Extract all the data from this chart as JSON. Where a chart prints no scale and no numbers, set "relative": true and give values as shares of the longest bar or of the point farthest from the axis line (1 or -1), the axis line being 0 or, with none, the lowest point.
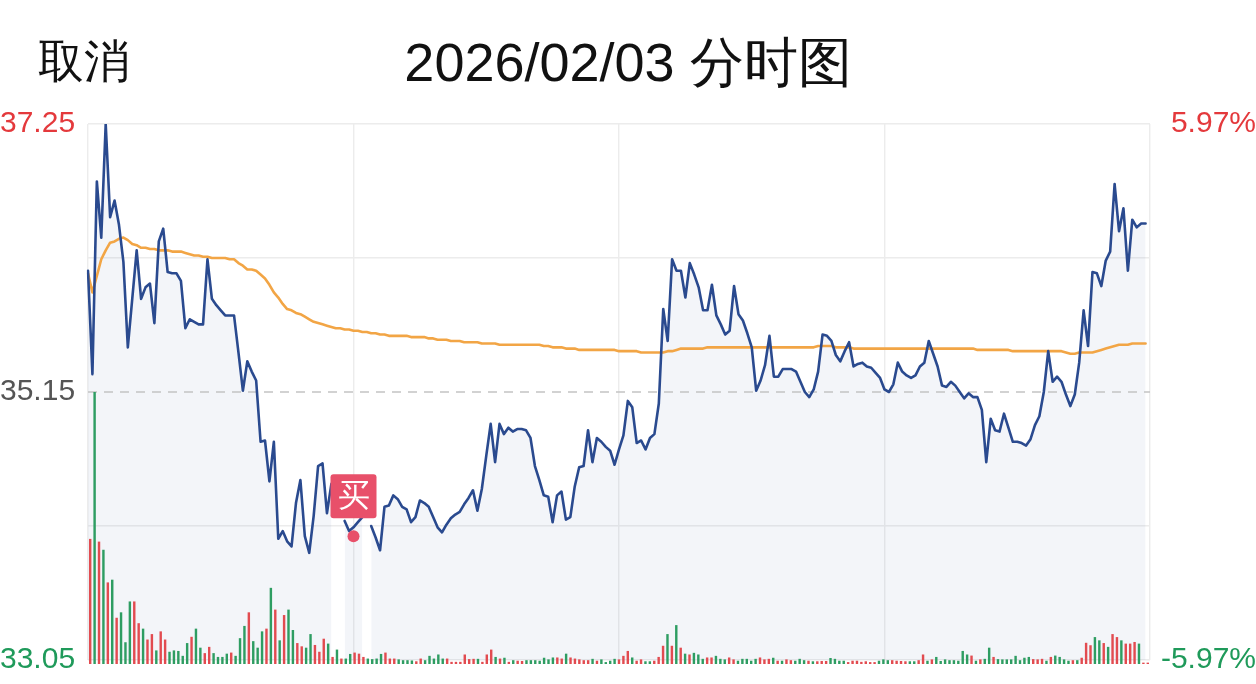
{
  "chart_data": [
    {
      "type": "line",
      "title": "2026/02/03 分时图",
      "annotations": [
        "取消"
      ],
      "categories": [
        null,
        null,
        null,
        null,
        null,
        null,
        null,
        null,
        null,
        null,
        null,
        null,
        null,
        null,
        null,
        null,
        null,
        null,
        null,
        null,
        null,
        null,
        null,
        null,
        null,
        null,
        null,
        null,
        null,
        null,
        null,
        null,
        null,
        null,
        null,
        null,
        null,
        null,
        null,
        null,
        null,
        null,
        null,
        null,
        null,
        null,
        null,
        null,
        null,
        null,
        null,
        null,
        null,
        null,
        null,
        null,
        null,
        null,
        null,
        null,
        null,
        null,
        null,
        null,
        null,
        null,
        null,
        null,
        null,
        null,
        null,
        null,
        null,
        null,
        null,
        null,
        null,
        null,
        null,
        null,
        null,
        null,
        null,
        null,
        null,
        null,
        null,
        null,
        null,
        null,
        null,
        null,
        null,
        null,
        null,
        null,
        null,
        null,
        null,
        null,
        null,
        null,
        null,
        null,
        null,
        null,
        null,
        null,
        null,
        null,
        null,
        null,
        null,
        null,
        null,
        null,
        null,
        null,
        null,
        null,
        null,
        null,
        null,
        null,
        null,
        null,
        null,
        null,
        null,
        null,
        null,
        null,
        null,
        null,
        null,
        null,
        null,
        null,
        null,
        null,
        null,
        null,
        null,
        null,
        null,
        null,
        null,
        null,
        null,
        null,
        null,
        null,
        null,
        null,
        null,
        null,
        null,
        null,
        null,
        null,
        null,
        null,
        null,
        null,
        null,
        null,
        null,
        null,
        null,
        null,
        null,
        null,
        null,
        null,
        null,
        null,
        null,
        null,
        null,
        null,
        null,
        null,
        null,
        null,
        null,
        null,
        null,
        null,
        null,
        null,
        null,
        null,
        null,
        null,
        null,
        null,
        null,
        null,
        null,
        null,
        null,
        null,
        null,
        null,
        null,
        null,
        null,
        null,
        null,
        null,
        null,
        null,
        null,
        null,
        null,
        null,
        null,
        null,
        null,
        null,
        null,
        null,
        null,
        null,
        null,
        null,
        null,
        null,
        null,
        null,
        null,
        null,
        null,
        null,
        null,
        null,
        null,
        null,
        null,
        null,
        null
      ],
      "series": [
        {
          "type": "area",
          "color": "#2a4a8f",
          "values": [
            36.1,
            35.29,
            36.8,
            36.36,
            37.25,
            36.52,
            36.65,
            36.46,
            36.17,
            35.5,
            35.88,
            36.26,
            35.88,
            35.97,
            36.0,
            35.69,
            36.33,
            36.43,
            36.09,
            36.08,
            36.08,
            36.02,
            35.65,
            35.72,
            35.7,
            35.68,
            35.68,
            36.19,
            35.88,
            35.83,
            35.79,
            35.75,
            35.75,
            35.75,
            35.46,
            35.16,
            35.39,
            35.31,
            35.24,
            34.76,
            34.77,
            34.45,
            34.76,
            34.0,
            34.06,
            33.98,
            33.94,
            34.28,
            34.46,
            34.02,
            33.89,
            34.18,
            34.57,
            34.59,
            34.2,
            34.43,
            null,
            null,
            34.14,
            34.06,
            34.09,
            34.13,
            34.17,
            null,
            34.1,
            34.01,
            33.91,
            34.25,
            34.26,
            34.34,
            34.31,
            34.25,
            34.23,
            34.13,
            34.17,
            34.3,
            34.28,
            34.25,
            34.17,
            34.09,
            34.05,
            34.11,
            34.16,
            34.19,
            34.21,
            34.27,
            34.32,
            34.38,
            34.22,
            34.39,
            34.65,
            34.9,
            34.6,
            34.9,
            34.82,
            34.87,
            34.84,
            34.86,
            34.86,
            34.85,
            34.79,
            34.57,
            34.46,
            34.34,
            34.33,
            34.13,
            34.34,
            34.37,
            34.15,
            34.17,
            34.41,
            34.56,
            34.57,
            34.85,
            34.6,
            34.79,
            34.76,
            34.72,
            34.69,
            34.58,
            34.7,
            34.81,
            35.08,
            35.03,
            34.75,
            34.77,
            34.7,
            34.79,
            34.82,
            35.06,
            35.8,
            35.55,
            36.19,
            36.1,
            36.1,
            35.89,
            36.16,
            36.07,
            35.97,
            35.79,
            35.79,
            35.99,
            35.75,
            35.68,
            35.6,
            35.63,
            35.98,
            35.76,
            35.71,
            35.61,
            35.5,
            35.16,
            35.24,
            35.36,
            35.59,
            35.27,
            35.27,
            35.33,
            35.33,
            35.33,
            35.31,
            35.23,
            35.15,
            35.11,
            35.17,
            35.31,
            35.6,
            35.59,
            35.55,
            35.44,
            35.39,
            35.47,
            35.54,
            35.35,
            35.37,
            35.38,
            35.35,
            35.34,
            35.3,
            35.26,
            35.17,
            35.15,
            35.21,
            35.38,
            35.31,
            35.28,
            35.26,
            35.28,
            35.35,
            35.38,
            35.55,
            35.45,
            35.35,
            35.2,
            35.19,
            35.23,
            35.2,
            35.15,
            35.1,
            35.14,
            35.11,
            35.11,
            35.01,
            34.6,
            34.94,
            34.85,
            34.84,
            34.98,
            34.87,
            34.76,
            34.76,
            34.75,
            34.73,
            34.78,
            34.89,
            34.96,
            35.15,
            35.47,
            35.23,
            35.27,
            35.23,
            35.13,
            35.04,
            35.13,
            35.38,
            35.79,
            35.51,
            36.09,
            36.08,
            35.98,
            36.18,
            36.25,
            36.78,
            36.41,
            36.59,
            36.1,
            36.5,
            36.44,
            36.47,
            36.47,
            null
          ]
        },
        {
          "type": "line",
          "color": "#f2a545",
          "values": [
            36.08,
            35.93,
            36.06,
            36.19,
            36.26,
            36.32,
            36.33,
            36.35,
            36.36,
            36.34,
            36.31,
            36.3,
            36.28,
            36.28,
            36.27,
            36.27,
            36.26,
            36.26,
            36.26,
            36.25,
            36.25,
            36.25,
            36.24,
            36.23,
            36.22,
            36.22,
            36.21,
            36.21,
            36.2,
            36.2,
            36.2,
            36.2,
            36.19,
            36.19,
            36.16,
            36.14,
            36.11,
            36.11,
            36.1,
            36.07,
            36.04,
            35.99,
            35.93,
            35.89,
            35.84,
            35.8,
            35.79,
            35.77,
            35.76,
            35.74,
            35.72,
            35.7,
            35.69,
            35.68,
            35.67,
            35.66,
            35.65,
            35.65,
            35.64,
            35.64,
            35.63,
            35.63,
            35.62,
            35.62,
            35.61,
            35.61,
            35.6,
            35.6,
            35.59,
            35.59,
            35.59,
            35.59,
            35.59,
            35.58,
            35.58,
            35.58,
            35.58,
            35.57,
            35.57,
            35.56,
            35.56,
            35.56,
            35.55,
            35.55,
            35.55,
            35.54,
            35.54,
            35.54,
            35.54,
            35.53,
            35.53,
            35.53,
            35.53,
            35.52,
            35.52,
            35.52,
            35.52,
            35.52,
            35.52,
            35.52,
            35.52,
            35.52,
            35.52,
            35.51,
            35.51,
            35.5,
            35.5,
            35.5,
            35.49,
            35.49,
            35.49,
            35.48,
            35.48,
            35.48,
            35.48,
            35.48,
            35.48,
            35.48,
            35.48,
            35.48,
            35.47,
            35.47,
            35.47,
            35.47,
            35.47,
            35.46,
            35.46,
            35.46,
            35.46,
            35.46,
            35.46,
            35.47,
            35.47,
            35.48,
            35.49,
            35.49,
            35.49,
            35.49,
            35.49,
            35.49,
            35.5,
            35.5,
            35.5,
            35.5,
            35.5,
            35.5,
            35.5,
            35.5,
            35.5,
            35.5,
            35.5,
            35.5,
            35.5,
            35.5,
            35.5,
            35.5,
            35.5,
            35.5,
            35.5,
            35.5,
            35.5,
            35.5,
            35.5,
            35.5,
            35.5,
            35.51,
            35.51,
            35.51,
            35.51,
            35.5,
            35.5,
            35.5,
            35.5,
            35.49,
            35.49,
            35.49,
            35.49,
            35.49,
            35.49,
            35.49,
            35.49,
            35.49,
            35.49,
            35.49,
            35.49,
            35.49,
            35.49,
            35.49,
            35.49,
            35.49,
            35.49,
            35.49,
            35.49,
            35.49,
            35.49,
            35.49,
            35.49,
            35.49,
            35.49,
            35.49,
            35.49,
            35.48,
            35.48,
            35.48,
            35.48,
            35.48,
            35.48,
            35.48,
            35.48,
            35.47,
            35.47,
            35.47,
            35.47,
            35.47,
            35.47,
            35.47,
            35.47,
            35.47,
            35.47,
            35.47,
            35.47,
            35.46,
            35.45,
            35.45,
            35.46,
            35.46,
            35.46,
            35.46,
            35.47,
            35.48,
            35.49,
            35.5,
            35.51,
            35.52,
            35.52,
            35.52,
            35.53,
            35.53,
            35.53,
            35.53,
            null
          ]
        },
        {
          "type": "scatter",
          "color": "#e8506a",
          "values": [
            null,
            null,
            null,
            null,
            null,
            null,
            null,
            null,
            null,
            null,
            null,
            null,
            null,
            null,
            null,
            null,
            null,
            null,
            null,
            null,
            null,
            null,
            null,
            null,
            null,
            null,
            null,
            null,
            null,
            null,
            null,
            null,
            null,
            null,
            null,
            null,
            null,
            null,
            null,
            null,
            null,
            null,
            null,
            null,
            null,
            null,
            null,
            null,
            null,
            null,
            null,
            null,
            null,
            null,
            null,
            null,
            null,
            null,
            null,
            null,
            34.02,
            null,
            null,
            null,
            null,
            null,
            null,
            null,
            null,
            null,
            null,
            null,
            null,
            null,
            null,
            null,
            null,
            null,
            null,
            null,
            null,
            null,
            null,
            null,
            null,
            null,
            null,
            null,
            null,
            null,
            null,
            null,
            null,
            null,
            null,
            null,
            null,
            null,
            null,
            null,
            null,
            null,
            null,
            null,
            null,
            null,
            null,
            null,
            null,
            null,
            null,
            null,
            null,
            null,
            null,
            null,
            null,
            null,
            null,
            null,
            null,
            null,
            null,
            null,
            null,
            null,
            null,
            null,
            null,
            null,
            null,
            null,
            null,
            null,
            null,
            null,
            null,
            null,
            null,
            null,
            null,
            null,
            null,
            null,
            null,
            null,
            null,
            null,
            null,
            null,
            null,
            null,
            null,
            null,
            null,
            null,
            null,
            null,
            null,
            null,
            null,
            null,
            null,
            null,
            null,
            null,
            null,
            null,
            null,
            null,
            null,
            null,
            null,
            null,
            null,
            null,
            null,
            null,
            null,
            null,
            null,
            null,
            null,
            null,
            null,
            null,
            null,
            null,
            null,
            null,
            null,
            null,
            null,
            null,
            null,
            null,
            null,
            null,
            null,
            null,
            null,
            null,
            null,
            null,
            null,
            null,
            null,
            null,
            null,
            null,
            null,
            null,
            null,
            null,
            null,
            null,
            null,
            null,
            null,
            null,
            null,
            null,
            null,
            null,
            null,
            null,
            null,
            null,
            null,
            null,
            null,
            null,
            null,
            null,
            null,
            null,
            null,
            null,
            null,
            null,
            null
          ],
          "value_labels": [
            null,
            null,
            null,
            null,
            null,
            null,
            null,
            null,
            null,
            null,
            null,
            null,
            null,
            null,
            null,
            null,
            null,
            null,
            null,
            null,
            null,
            null,
            null,
            null,
            null,
            null,
            null,
            null,
            null,
            null,
            null,
            null,
            null,
            null,
            null,
            null,
            null,
            null,
            null,
            null,
            null,
            null,
            null,
            null,
            null,
            null,
            null,
            null,
            null,
            null,
            null,
            null,
            null,
            null,
            null,
            null,
            null,
            null,
            null,
            null,
            "买",
            null,
            null,
            null,
            null,
            null,
            null,
            null,
            null,
            null,
            null,
            null,
            null,
            null,
            null,
            null,
            null,
            null,
            null,
            null,
            null,
            null,
            null,
            null,
            null,
            null,
            null,
            null,
            null,
            null,
            null,
            null,
            null,
            null,
            null,
            null,
            null,
            null,
            null,
            null,
            null,
            null,
            null,
            null,
            null,
            null,
            null,
            null,
            null,
            null,
            null,
            null,
            null,
            null,
            null,
            null,
            null,
            null,
            null,
            null,
            null,
            null,
            null,
            null,
            null,
            null,
            null,
            null,
            null,
            null,
            null,
            null,
            null,
            null,
            null,
            null,
            null,
            null,
            null,
            null,
            null,
            null,
            null,
            null,
            null,
            null,
            null,
            null,
            null,
            null,
            null,
            null,
            null,
            null,
            null,
            null,
            null,
            null,
            null,
            null,
            null,
            null,
            null,
            null,
            null,
            null,
            null,
            null,
            null,
            null,
            null,
            null,
            null,
            null,
            null,
            null,
            null,
            null,
            null,
            null,
            null,
            null,
            null,
            null,
            null,
            null,
            null,
            null,
            null,
            null,
            null,
            null,
            null,
            null,
            null,
            null,
            null,
            null,
            null,
            null,
            null,
            null,
            null,
            null,
            null,
            null,
            null,
            null,
            null,
            null,
            null,
            null,
            null,
            null,
            null,
            null,
            null,
            null,
            null,
            null,
            null,
            null,
            null,
            null,
            null,
            null,
            null,
            null,
            null,
            null,
            null,
            null,
            null,
            null,
            null,
            null,
            null,
            null,
            null,
            null,
            null
          ]
        }
      ],
      "ylim": [
        33.05,
        37.25
      ],
      "yticks": [
        33.05,
        {
          "value": 34.1,
          "label": null
        },
        35.15,
        {
          "value": 36.2,
          "label": null
        },
        37.25
      ],
      "y2lim": [
        -5.97,
        5.97
      ],
      "y2ticks": [
        {
          "value": -5.97,
          "label": "-5.97%"
        },
        {
          "value": 5.97,
          "label": "5.97%"
        }
      ],
      "ref_lines": [
        {
          "axis": "y",
          "value": 35.15,
          "color": "#c4c4c4",
          "line_style": "dashed"
        }
      ],
      "grid": true
    },
    {
      "type": "bar",
      "relative": true,
      "categories": [
        null,
        null,
        null,
        null,
        null,
        null,
        null,
        null,
        null,
        null,
        null,
        null,
        null,
        null,
        null,
        null,
        null,
        null,
        null,
        null,
        null,
        null,
        null,
        null,
        null,
        null,
        null,
        null,
        null,
        null,
        null,
        null,
        null,
        null,
        null,
        null,
        null,
        null,
        null,
        null,
        null,
        null,
        null,
        null,
        null,
        null,
        null,
        null,
        null,
        null,
        null,
        null,
        null,
        null,
        null,
        null,
        null,
        null,
        null,
        null,
        null,
        null,
        null,
        null,
        null,
        null,
        null,
        null,
        null,
        null,
        null,
        null,
        null,
        null,
        null,
        null,
        null,
        null,
        null,
        null,
        null,
        null,
        null,
        null,
        null,
        null,
        null,
        null,
        null,
        null,
        null,
        null,
        null,
        null,
        null,
        null,
        null,
        null,
        null,
        null,
        null,
        null,
        null,
        null,
        null,
        null,
        null,
        null,
        null,
        null,
        null,
        null,
        null,
        null,
        null,
        null,
        null,
        null,
        null,
        null,
        null,
        null,
        null,
        null,
        null,
        null,
        null,
        null,
        null,
        null,
        null,
        null,
        null,
        null,
        null,
        null,
        null,
        null,
        null,
        null,
        null,
        null,
        null,
        null,
        null,
        null,
        null,
        null,
        null,
        null,
        null,
        null,
        null,
        null,
        null,
        null,
        null,
        null,
        null,
        null,
        null,
        null,
        null,
        null,
        null,
        null,
        null,
        null,
        null,
        null,
        null,
        null,
        null,
        null,
        null,
        null,
        null,
        null,
        null,
        null,
        null,
        null,
        null,
        null,
        null,
        null,
        null,
        null,
        null,
        null,
        null,
        null,
        null,
        null,
        null,
        null,
        null,
        null,
        null,
        null,
        null,
        null,
        null,
        null,
        null,
        null,
        null,
        null,
        null,
        null,
        null,
        null,
        null,
        null,
        null,
        null,
        null,
        null,
        null,
        null,
        null,
        null,
        null,
        null,
        null,
        null,
        null,
        null,
        null,
        null,
        null,
        null,
        null,
        null,
        null,
        null,
        null,
        null,
        null,
        null,
        null
      ],
      "values": [
        0.46,
        1,
        0.45,
        0.42,
        0.3,
        0.31,
        0.17,
        0.19,
        0.08,
        0.23,
        0.23,
        0.15,
        0.13,
        0.09,
        0.11,
        0.05,
        0.12,
        0.09,
        0.045,
        0.05,
        0.048,
        0.03,
        0.077,
        0.1,
        0.13,
        0.06,
        0.04,
        0.063,
        0.04,
        0.026,
        0.026,
        0.038,
        0.042,
        0.03,
        0.095,
        0.14,
        0.19,
        0.084,
        0.06,
        0.12,
        0.13,
        0.28,
        0.2,
        0.087,
        0.18,
        0.2,
        0.125,
        0.077,
        0.065,
        0.06,
        0.11,
        0.07,
        0.045,
        0.093,
        0.075,
        0.026,
        0.053,
        0.02,
        0.02,
        0.037,
        0.042,
        0.038,
        0.026,
        0.02,
        0.018,
        0.02,
        0.037,
        0.042,
        0.02,
        0.02,
        0.017,
        0.014,
        0.014,
        0.013,
        0.01,
        0.02,
        0.014,
        0.03,
        0.02,
        0.035,
        0.02,
        0.02,
        0.008,
        0.008,
        0.008,
        0.035,
        0.018,
        0.019,
        0.019,
        0.008,
        0.035,
        0.053,
        0.026,
        0.02,
        0.023,
        0.008,
        0.014,
        0.012,
        0.011,
        0.014,
        0.014,
        0.014,
        0.012,
        0.023,
        0.017,
        0.024,
        0.024,
        0.02,
        0.038,
        0.024,
        0.02,
        0.017,
        0.014,
        0.014,
        0.019,
        0.012,
        0.017,
        0.007,
        0.012,
        0.019,
        0.017,
        0.03,
        0.048,
        0.024,
        0.012,
        0.017,
        0.01,
        0.01,
        0.012,
        0.026,
        0.067,
        0.11,
        0.067,
        0.143,
        0.06,
        0.038,
        0.035,
        0.041,
        0.035,
        0.019,
        0.024,
        0.024,
        0.03,
        0.019,
        0.017,
        0.024,
        0.017,
        0.012,
        0.019,
        0.019,
        0.012,
        0.019,
        0.024,
        0.017,
        0.019,
        0.023,
        0.012,
        0.012,
        0.017,
        0.014,
        0.012,
        0.019,
        0.014,
        0.012,
        0.01,
        0.01,
        0.011,
        0.011,
        0.022,
        0.019,
        0.012,
        0.012,
        0.007,
        0.012,
        0.012,
        0.008,
        0.01,
        0.007,
        0.007,
        0.012,
        0.017,
        0.014,
        0.014,
        0.012,
        0.011,
        0.01,
        0.01,
        0.01,
        0.014,
        0.035,
        0.012,
        0.017,
        0.026,
        0.011,
        0.017,
        0.014,
        0.014,
        0.012,
        0.048,
        0.035,
        0.031,
        0.012,
        0.017,
        0.019,
        0.06,
        0.026,
        0.018,
        0.017,
        0.017,
        0.017,
        0.03,
        0.014,
        0.023,
        0.026,
        0.018,
        0.017,
        0.019,
        0.012,
        0.026,
        0.031,
        0.026,
        0.017,
        0.012,
        0.014,
        0.014,
        0.023,
        0.078,
        0.069,
        0.099,
        0.087,
        0.077,
        0.063,
        0.11,
        0.099,
        0.087,
        0.075,
        0.075,
        0.081,
        0.075,
        0.005,
        0.005
      ],
      "colors": [
        "#e24b50",
        "#2e9d62",
        "#e24b50",
        "#2e9d62",
        "#e24b50",
        "#2e9d62",
        "#e24b50",
        "#2e9d62",
        "#2e9d62",
        "#2e9d62",
        "#e24b50",
        "#e24b50",
        "#2e9d62",
        "#e24b50",
        "#e24b50",
        "#2e9d62",
        "#e24b50",
        "#e24b50",
        "#2e9d62",
        "#2e9d62",
        "#2e9d62",
        "#2e9d62",
        "#2e9d62",
        "#e24b50",
        "#2e9d62",
        "#2e9d62",
        "#e24b50",
        "#e24b50",
        "#2e9d62",
        "#2e9d62",
        "#2e9d62",
        "#2e9d62",
        "#e24b50",
        "#2e9d62",
        "#2e9d62",
        "#2e9d62",
        "#e24b50",
        "#2e9d62",
        "#2e9d62",
        "#2e9d62",
        "#e24b50",
        "#2e9d62",
        "#e24b50",
        "#2e9d62",
        "#e24b50",
        "#2e9d62",
        "#2e9d62",
        "#e24b50",
        "#e24b50",
        "#2e9d62",
        "#2e9d62",
        "#e24b50",
        "#e24b50",
        "#e24b50",
        "#2e9d62",
        "#e24b50",
        "#2e9d62",
        "#e24b50",
        "#2e9d62",
        "#2e9d62",
        "#e24b50",
        "#e24b50",
        "#e24b50",
        "#2e9d62",
        "#2e9d62",
        "#2e9d62",
        "#2e9d62",
        "#e24b50",
        "#e24b50",
        "#e24b50",
        "#2e9d62",
        "#2e9d62",
        "#2e9d62",
        "#2e9d62",
        "#e24b50",
        "#e24b50",
        "#2e9d62",
        "#2e9d62",
        "#2e9d62",
        "#2e9d62",
        "#2e9d62",
        "#e24b50",
        "#e24b50",
        "#e24b50",
        "#e24b50",
        "#e24b50",
        "#e24b50",
        "#e24b50",
        "#2e9d62",
        "#e24b50",
        "#e24b50",
        "#e24b50",
        "#2e9d62",
        "#e24b50",
        "#2e9d62",
        "#e24b50",
        "#2e9d62",
        "#e24b50",
        "#e24b50",
        "#2e9d62",
        "#2e9d62",
        "#2e9d62",
        "#2e9d62",
        "#2e9d62",
        "#2e9d62",
        "#2e9d62",
        "#e24b50",
        "#e24b50",
        "#2e9d62",
        "#e24b50",
        "#e24b50",
        "#e24b50",
        "#e24b50",
        "#e24b50",
        "#2e9d62",
        "#e24b50",
        "#2e9d62",
        "#2e9d62",
        "#2e9d62",
        "#2e9d62",
        "#e24b50",
        "#e24b50",
        "#e24b50",
        "#2e9d62",
        "#e24b50",
        "#e24b50",
        "#2e9d62",
        "#2e9d62",
        "#e24b50",
        "#e24b50",
        "#e24b50",
        "#2e9d62",
        "#e24b50",
        "#2e9d62",
        "#e24b50",
        "#2e9d62",
        "#e24b50",
        "#2e9d62",
        "#2e9d62",
        "#2e9d62",
        "#e24b50",
        "#e24b50",
        "#2e9d62",
        "#2e9d62",
        "#2e9d62",
        "#e24b50",
        "#e24b50",
        "#2e9d62",
        "#2e9d62",
        "#2e9d62",
        "#2e9d62",
        "#2e9d62",
        "#e24b50",
        "#e24b50",
        "#e24b50",
        "#2e9d62",
        "#e24b50",
        "#2e9d62",
        "#e24b50",
        "#e24b50",
        "#2e9d62",
        "#2e9d62",
        "#2e9d62",
        "#e24b50",
        "#2e9d62",
        "#e24b50",
        "#e24b50",
        "#e24b50",
        "#2e9d62",
        "#2e9d62",
        "#2e9d62",
        "#2e9d62",
        "#e24b50",
        "#e24b50",
        "#e24b50",
        "#e24b50",
        "#e24b50",
        "#e24b50",
        "#e24b50",
        "#2e9d62",
        "#2e9d62",
        "#2e9d62",
        "#e24b50",
        "#e24b50",
        "#e24b50",
        "#e24b50",
        "#2e9d62",
        "#2e9d62",
        "#e24b50",
        "#e24b50",
        "#2e9d62",
        "#e24b50",
        "#2e9d62",
        "#2e9d62",
        "#2e9d62",
        "#2e9d62",
        "#2e9d62",
        "#2e9d62",
        "#2e9d62",
        "#2e9d62",
        "#e24b50",
        "#2e9d62",
        "#e24b50",
        "#2e9d62",
        "#2e9d62",
        "#e24b50",
        "#2e9d62",
        "#2e9d62",
        "#2e9d62",
        "#2e9d62",
        "#2e9d62",
        "#2e9d62",
        "#2e9d62",
        "#2e9d62",
        "#e24b50",
        "#e24b50",
        "#e24b50",
        "#2e9d62",
        "#e24b50",
        "#2e9d62",
        "#2e9d62",
        "#2e9d62",
        "#2e9d62",
        "#e24b50",
        "#2e9d62",
        "#e24b50",
        "#e24b50",
        "#e24b50",
        "#2e9d62",
        "#2e9d62",
        "#e24b50",
        "#2e9d62",
        "#e24b50",
        "#e24b50",
        "#2e9d62",
        "#e24b50",
        "#e24b50",
        "#e24b50",
        "#2e9d62",
        "#e24b50",
        "#e24b50"
      ]
    }
  ]
}
